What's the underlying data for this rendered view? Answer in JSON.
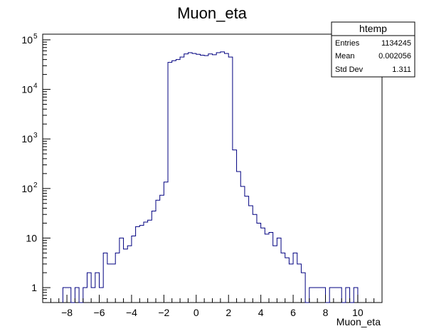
{
  "chart_data": {
    "type": "histogram",
    "title": "Muon_eta",
    "xlabel": "Muon_eta",
    "ylabel": "",
    "xlim": [
      -9.5,
      11.5
    ],
    "ylim": [
      0.5,
      130000
    ],
    "y_scale": "log",
    "grid": false,
    "line_color": "#000080",
    "x_ticks": [
      {
        "value": -8,
        "label": "−8"
      },
      {
        "value": -6,
        "label": "−6"
      },
      {
        "value": -4,
        "label": "−4"
      },
      {
        "value": -2,
        "label": "−2"
      },
      {
        "value": 0,
        "label": "0"
      },
      {
        "value": 2,
        "label": "2"
      },
      {
        "value": 4,
        "label": "4"
      },
      {
        "value": 6,
        "label": "6"
      },
      {
        "value": 8,
        "label": "8"
      },
      {
        "value": 10,
        "label": "10"
      }
    ],
    "y_ticks": [
      {
        "value": 1,
        "label": "1"
      },
      {
        "value": 10,
        "label": "10"
      },
      {
        "value": 100,
        "label": "10",
        "exp": "2"
      },
      {
        "value": 1000,
        "label": "10",
        "exp": "3"
      },
      {
        "value": 10000,
        "label": "10",
        "exp": "4"
      },
      {
        "value": 100000,
        "label": "10",
        "exp": "5"
      }
    ],
    "bins": {
      "low_edges": [
        -8.25,
        -8.0,
        -7.75,
        -7.5,
        -7.0,
        -6.75,
        -6.5,
        -6.25,
        -6.0,
        -5.75,
        -5.5,
        -5.25,
        -5.0,
        -4.75,
        -4.5,
        -4.25,
        -4.0,
        -3.75,
        -3.5,
        -3.25,
        -3.0,
        -2.75,
        -2.5,
        -2.25,
        -2.0,
        -1.75,
        -1.5,
        -1.25,
        -1.0,
        -0.75,
        -0.5,
        -0.25,
        0.0,
        0.25,
        0.5,
        0.75,
        1.0,
        1.25,
        1.5,
        1.75,
        2.0,
        2.25,
        2.5,
        2.75,
        3.0,
        3.25,
        3.5,
        3.75,
        4.0,
        4.25,
        4.5,
        4.75,
        5.0,
        5.25,
        5.5,
        5.75,
        6.0,
        6.25,
        6.5,
        7.0,
        7.25,
        7.5,
        7.75,
        8.25,
        8.5,
        8.75,
        9.25,
        9.75
      ],
      "width": 0.25,
      "counts": [
        1,
        1,
        0,
        1,
        1,
        2,
        1,
        2,
        1,
        5,
        3,
        3,
        5,
        10,
        6,
        7,
        11,
        17,
        18,
        21,
        23,
        35,
        58,
        73,
        135,
        35000,
        38000,
        40000,
        45000,
        52000,
        55000,
        53000,
        51000,
        49000,
        48000,
        52000,
        50000,
        55000,
        57000,
        53000,
        45000,
        600,
        220,
        110,
        70,
        45,
        30,
        20,
        16,
        12,
        13,
        7,
        10,
        5,
        4,
        3,
        5,
        3,
        2,
        1,
        1,
        1,
        1,
        1,
        1,
        1,
        1,
        1
      ]
    }
  },
  "stats_box": {
    "title": "htemp",
    "rows": [
      {
        "label": "Entries",
        "value": "1134245"
      },
      {
        "label": "Mean",
        "value": "0.002056"
      },
      {
        "label": "Std Dev",
        "value": "1.311"
      }
    ]
  }
}
